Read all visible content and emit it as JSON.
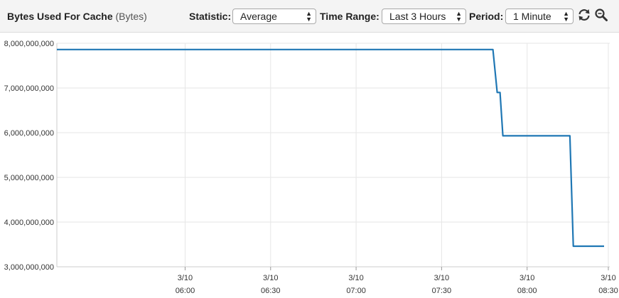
{
  "header": {
    "title": "Bytes Used For Cache",
    "unit": "(Bytes)",
    "statistic_label": "Statistic:",
    "statistic_value": "Average",
    "time_range_label": "Time Range:",
    "time_range_value": "Last 3 Hours",
    "period_label": "Period:",
    "period_value": "1 Minute",
    "refresh_icon": "refresh-icon",
    "zoom_icon": "zoom-icon"
  },
  "chart_data": {
    "type": "line",
    "title": "Bytes Used For Cache",
    "ylabel": "Bytes",
    "xlabel": "",
    "ylim": [
      3000000000,
      8000000000
    ],
    "y_ticks": [
      {
        "value": 8000000000,
        "label": "8,000,000,000"
      },
      {
        "value": 7000000000,
        "label": "7,000,000,000"
      },
      {
        "value": 6000000000,
        "label": "6,000,000,000"
      },
      {
        "value": 5000000000,
        "label": "5,000,000,000"
      },
      {
        "value": 4000000000,
        "label": "4,000,000,000"
      },
      {
        "value": 3000000000,
        "label": "3,000,000,000"
      }
    ],
    "x_range_minutes": [
      -45,
      149
    ],
    "x_ticks": [
      {
        "minutes": 0,
        "date": "3/10",
        "time": "06:00"
      },
      {
        "minutes": 30,
        "date": "3/10",
        "time": "06:30"
      },
      {
        "minutes": 60,
        "date": "3/10",
        "time": "07:00"
      },
      {
        "minutes": 90,
        "date": "3/10",
        "time": "07:30"
      },
      {
        "minutes": 120,
        "date": "3/10",
        "time": "08:00"
      },
      {
        "minutes": 150,
        "date": "3/10",
        "time": "08:30"
      }
    ],
    "grid": true,
    "series": [
      {
        "name": "Bytes Used For Cache",
        "color": "#1f77b4",
        "points": [
          [
            -45,
            7860000000
          ],
          [
            108,
            7860000000
          ],
          [
            109.5,
            6900000000
          ],
          [
            110.5,
            6900000000
          ],
          [
            111.5,
            5930000000
          ],
          [
            135,
            5930000000
          ],
          [
            136.2,
            3460000000
          ],
          [
            147,
            3460000000
          ]
        ]
      }
    ]
  }
}
